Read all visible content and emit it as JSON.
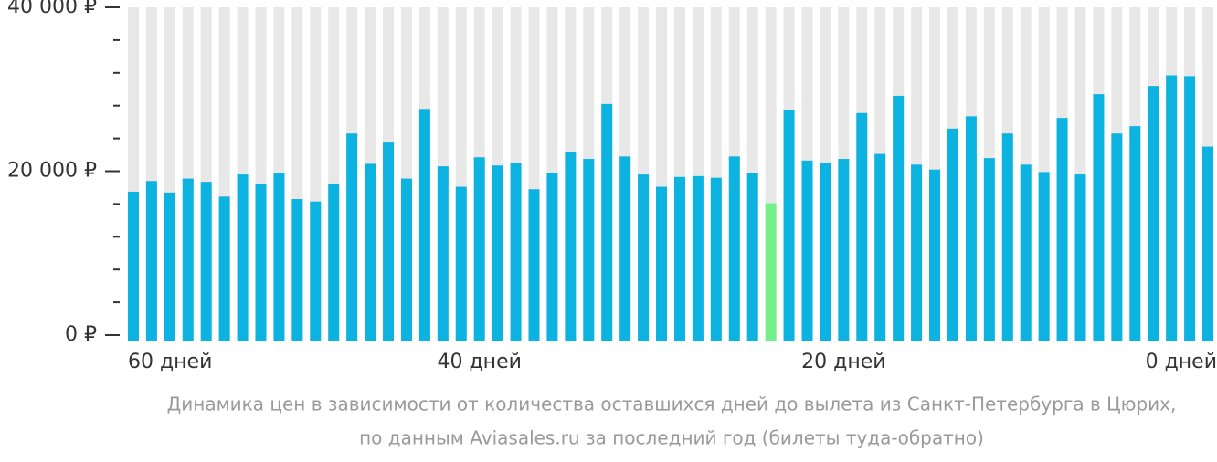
{
  "chart_data": {
    "type": "bar",
    "caption": [
      "Динамика цен в зависимости от количества оставшихся дней до вылета из Санкт-Петербурга в Цюрих,",
      "по данным Aviasales.ru за последний год (билеты туда-обратно)"
    ],
    "categories": [
      "60 дней",
      null,
      null,
      null,
      null,
      null,
      null,
      null,
      null,
      null,
      null,
      null,
      null,
      null,
      null,
      null,
      null,
      null,
      null,
      "40 дней",
      null,
      null,
      null,
      null,
      null,
      null,
      null,
      null,
      null,
      null,
      null,
      null,
      null,
      null,
      null,
      null,
      null,
      null,
      null,
      "20 дней",
      null,
      null,
      null,
      null,
      null,
      null,
      null,
      null,
      null,
      null,
      null,
      null,
      null,
      null,
      null,
      null,
      null,
      null,
      null,
      "0 дней"
    ],
    "values": [
      17500,
      18800,
      17400,
      19100,
      18700,
      16900,
      19600,
      18400,
      19800,
      16600,
      16300,
      18500,
      24600,
      20900,
      23500,
      19100,
      27600,
      20600,
      18100,
      21700,
      20700,
      21000,
      17800,
      19800,
      22400,
      21500,
      28200,
      21800,
      19600,
      18100,
      19300,
      19400,
      19200,
      21800,
      19800,
      16100,
      27500,
      21300,
      21000,
      21500,
      27100,
      22100,
      29200,
      20800,
      20200,
      25200,
      26700,
      21600,
      24600,
      20800,
      19900,
      26500,
      19600,
      29400,
      24600,
      25500,
      30400,
      31700,
      31600,
      23000
    ],
    "color": "#0cb2e0",
    "highlight": {
      "index": 35,
      "color": "#74f08a"
    },
    "background_color": "#e8e8e8",
    "ylim": [
      0,
      40000
    ],
    "yticks": [
      {
        "value": 0,
        "label": "0 ₽"
      },
      {
        "value": 20000,
        "label": "20 000 ₽"
      },
      {
        "value": 40000,
        "label": "40 000 ₽"
      }
    ],
    "minor_yticks": [
      4000,
      8000,
      12000,
      16000,
      24000,
      28000,
      32000,
      36000
    ]
  }
}
